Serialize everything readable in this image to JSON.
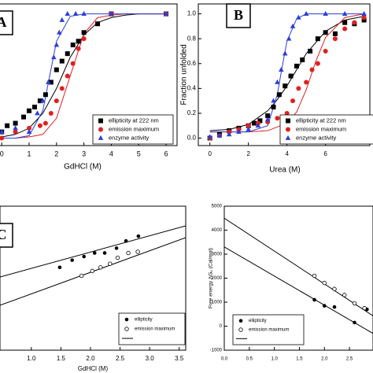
{
  "chart_data": [
    {
      "type": "scatter",
      "label": "A",
      "x_label": "GdHCl (M)",
      "xlim": [
        -0.35,
        6.4
      ],
      "ylim": [
        -0.06,
        1.08
      ],
      "xticks": [
        0,
        1,
        2,
        3,
        4,
        5,
        6
      ],
      "series": [
        {
          "name": "ellipticity at 222 nm",
          "color": "#000000",
          "marker": "square",
          "x": [
            0,
            0.2,
            0.5,
            0.8,
            1.0,
            1.2,
            1.4,
            1.6,
            1.8,
            2.0,
            2.2,
            2.4,
            2.6,
            2.8,
            3.0,
            3.5,
            4,
            6
          ],
          "values": [
            0.05,
            0.1,
            0.12,
            0.17,
            0.22,
            0.25,
            0.3,
            0.35,
            0.45,
            0.55,
            0.62,
            0.68,
            0.75,
            0.78,
            0.85,
            0.92,
            1.0,
            1.0
          ],
          "fit": {
            "x": [
              0,
              0.5,
              1,
              1.5,
              2,
              2.5,
              3,
              3.5,
              4,
              4.5,
              5,
              5.5,
              6
            ],
            "values": [
              0.01,
              0.03,
              0.08,
              0.2,
              0.4,
              0.65,
              0.83,
              0.93,
              0.97,
              0.99,
              1.0,
              1.0,
              1.0
            ]
          }
        },
        {
          "name": "emission maximum",
          "color": "#e02020",
          "marker": "circle",
          "x": [
            0,
            0.5,
            1.0,
            1.4,
            1.6,
            1.8,
            2.0,
            2.2,
            2.4,
            2.6,
            2.8,
            3.0,
            4,
            6
          ],
          "values": [
            0.0,
            0.05,
            0.08,
            0.1,
            0.12,
            0.2,
            0.3,
            0.4,
            0.5,
            0.6,
            0.72,
            0.8,
            1.0,
            1.0
          ],
          "fit": {
            "x": [
              0,
              0.5,
              1,
              1.5,
              2,
              2.5,
              3,
              3.5,
              4,
              4.5,
              5,
              5.5,
              6
            ],
            "values": [
              0,
              0,
              0.01,
              0.03,
              0.16,
              0.5,
              0.84,
              0.97,
              0.99,
              1.0,
              1.0,
              1.0,
              1.0
            ]
          }
        },
        {
          "name": "enzyme activity",
          "color": "#2a3fd6",
          "marker": "triangle",
          "x": [
            0,
            0.5,
            1.0,
            1.3,
            1.5,
            1.7,
            1.9,
            2.0,
            2.1,
            2.2,
            2.4,
            2.7,
            3.0,
            4.0,
            6
          ],
          "values": [
            0.05,
            0.08,
            0.05,
            0.2,
            0.3,
            0.45,
            0.65,
            0.75,
            0.85,
            0.95,
            1.0,
            1.0,
            1.0,
            1.0,
            1.0
          ],
          "fit": {
            "x": [
              0,
              0.5,
              1,
              1.5,
              2,
              2.5,
              3,
              4,
              5,
              6
            ],
            "values": [
              0,
              0,
              0.02,
              0.22,
              0.78,
              0.98,
              1.0,
              1.0,
              1.0,
              1.0
            ]
          }
        }
      ]
    },
    {
      "type": "scatter",
      "label": "B",
      "x_label": "Urea (M)",
      "y_label": "Fraction unfolded",
      "xlim": [
        -0.6,
        8.3
      ],
      "ylim": [
        -0.06,
        1.08
      ],
      "xticks": [
        0,
        2,
        4,
        6
      ],
      "yticks": [
        {
          "value": 0,
          "label": "0.0"
        },
        {
          "value": 0.2,
          "label": "0.2"
        },
        {
          "value": 0.4,
          "label": "0.4"
        },
        {
          "value": 0.6,
          "label": "0.6"
        },
        {
          "value": 0.8,
          "label": "0.8"
        },
        {
          "value": 1,
          "label": "1.0"
        }
      ],
      "series": [
        {
          "name": "ellipticity at 222 nm",
          "color": "#000000",
          "marker": "square",
          "x": [
            0,
            0.5,
            1,
            1.5,
            2,
            2.3,
            2.6,
            3,
            3.3,
            3.6,
            3.9,
            4.2,
            4.5,
            4.8,
            5.2,
            5.6,
            6,
            6.5,
            7,
            7.5,
            8
          ],
          "values": [
            0.0,
            0.03,
            0.06,
            0.08,
            0.1,
            0.12,
            0.14,
            0.18,
            0.25,
            0.35,
            0.42,
            0.5,
            0.58,
            0.63,
            0.7,
            0.8,
            0.85,
            0.84,
            0.93,
            0.92,
            0.95
          ],
          "fit": {
            "x": [
              0,
              1,
              2,
              3,
              3.5,
              4,
              4.5,
              5,
              6,
              7,
              8
            ],
            "values": [
              0.06,
              0.07,
              0.11,
              0.22,
              0.31,
              0.42,
              0.55,
              0.68,
              0.86,
              0.95,
              0.98
            ]
          }
        },
        {
          "name": "emission maximum",
          "color": "#e02020",
          "marker": "circle",
          "x": [
            0,
            0.5,
            1,
            1.5,
            2,
            2.5,
            3,
            3.5,
            4,
            4.3,
            4.6,
            5,
            5.3,
            5.6,
            6,
            6.5,
            7,
            7.5,
            8
          ],
          "values": [
            0,
            0.02,
            0.05,
            0.07,
            0.1,
            0.12,
            0.13,
            0.16,
            0.2,
            0.3,
            0.4,
            0.45,
            0.55,
            0.6,
            0.7,
            0.8,
            0.88,
            0.93,
            0.97
          ],
          "fit": {
            "x": [
              0,
              1,
              2,
              3,
              4,
              4.5,
              5,
              5.5,
              6,
              7,
              8
            ],
            "values": [
              0.05,
              0.05,
              0.05,
              0.06,
              0.12,
              0.21,
              0.39,
              0.62,
              0.81,
              0.97,
              1.0
            ]
          }
        },
        {
          "name": "enzyme activity",
          "color": "#2a3fd6",
          "marker": "triangle",
          "x": [
            0,
            0.5,
            1,
            1.5,
            2,
            2.5,
            3,
            3.3,
            3.5,
            3.7,
            3.9,
            4.1,
            4.3,
            4.6,
            5,
            6,
            7,
            8
          ],
          "values": [
            0.01,
            0.02,
            0.03,
            0.05,
            0.07,
            0.1,
            0.15,
            0.3,
            0.45,
            0.55,
            0.68,
            0.8,
            0.9,
            0.97,
            1.0,
            1.0,
            1.0,
            1.0
          ],
          "fit": {
            "x": [
              0,
              1,
              2,
              3,
              3.5,
              3.7,
              4,
              4.5,
              5,
              8
            ],
            "values": [
              0.05,
              0.05,
              0.05,
              0.1,
              0.35,
              0.53,
              0.78,
              0.96,
              1.0,
              1.0
            ]
          }
        }
      ]
    },
    {
      "type": "scatter",
      "label": "C",
      "x_label": "GdHCl (M)",
      "xlim": [
        0.47,
        3.61
      ],
      "ylim": [
        -1000,
        5000
      ],
      "xticks": [
        {
          "value": 1,
          "label": "1.0"
        },
        {
          "value": 1.5,
          "label": "1.5"
        },
        {
          "value": 2,
          "label": "2.0"
        },
        {
          "value": 2.5,
          "label": "2.5"
        },
        {
          "value": 3,
          "label": "3.0"
        },
        {
          "value": 3.5,
          "label": "3.5"
        }
      ],
      "series": [
        {
          "name": "ellipticity",
          "color": "#000000",
          "marker": "circle",
          "x": [
            1.48,
            1.69,
            1.89,
            2.07,
            2.24,
            2.44,
            2.6,
            2.81
          ],
          "values": [
            2450,
            2750,
            2900,
            3050,
            3050,
            3250,
            3550,
            3750
          ]
        },
        {
          "name": "emission maximum",
          "color": "#000000",
          "marker": "open-circle",
          "x": [
            1.85,
            2.03,
            2.17,
            2.33,
            2.46,
            2.64,
            2.8
          ],
          "values": [
            2100,
            2300,
            2450,
            2600,
            2850,
            3050,
            3100
          ]
        }
      ],
      "lines": [
        {
          "x": [
            0.47,
            3.61
          ],
          "values": [
            2050,
            4180
          ]
        },
        {
          "x": [
            0.47,
            3.61
          ],
          "values": [
            870,
            3690
          ]
        }
      ]
    },
    {
      "type": "scatter",
      "y_label": "Free energy ΔGᵤ (Cal/mol)",
      "xlim": [
        0,
        2.97
      ],
      "ylim": [
        -1000,
        5000
      ],
      "xticks": [
        {
          "value": 0,
          "label": "0.0"
        },
        {
          "value": 0.5,
          "label": "0.5"
        },
        {
          "value": 1,
          "label": "1.0"
        },
        {
          "value": 1.5,
          "label": "1.5"
        },
        {
          "value": 2,
          "label": "2.0"
        },
        {
          "value": 2.5,
          "label": "2.5"
        }
      ],
      "yticks": [
        -1000,
        0,
        1000,
        2000,
        3000,
        4000,
        5000
      ],
      "series": [
        {
          "name": "ellipticity",
          "color": "#000000",
          "marker": "circle",
          "x": [
            1.8,
            2.0,
            2.2,
            2.6,
            2.85
          ],
          "values": [
            1100,
            850,
            800,
            150,
            700
          ]
        },
        {
          "name": "emission maximum",
          "color": "#000000",
          "marker": "open-circle",
          "x": [
            1.8,
            2.0,
            2.2,
            2.4,
            2.6,
            2.8
          ],
          "values": [
            2100,
            1800,
            1550,
            1300,
            950,
            750
          ]
        }
      ],
      "lines": [
        {
          "x": [
            0,
            2.97
          ],
          "values": [
            4500,
            430
          ]
        },
        {
          "x": [
            0,
            2.97
          ],
          "values": [
            3300,
            -300
          ]
        }
      ]
    }
  ]
}
